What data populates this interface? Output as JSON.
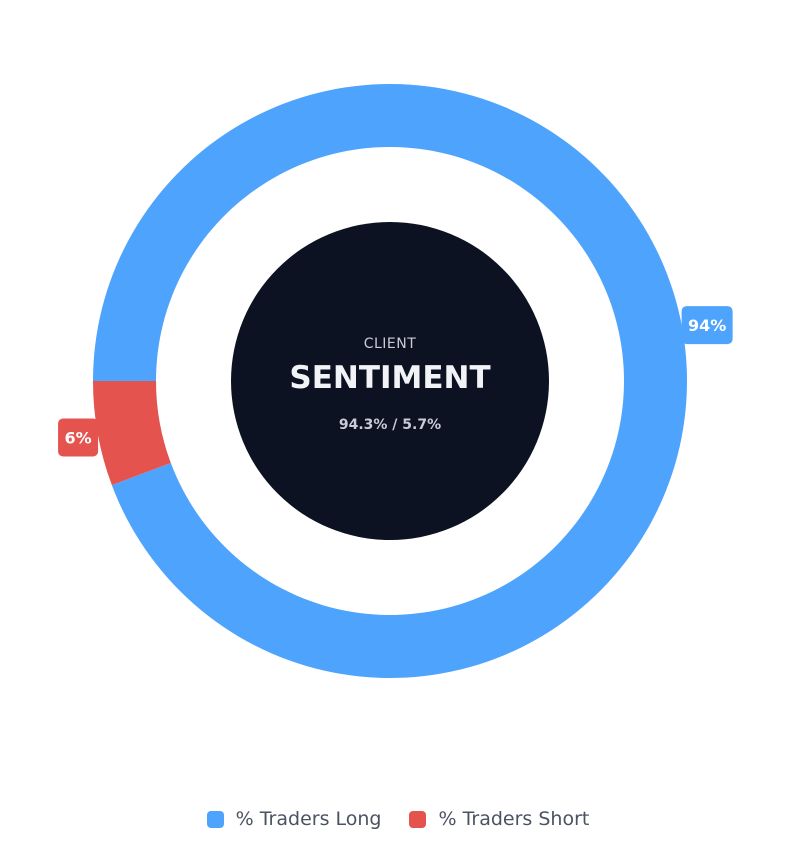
{
  "chart_data": {
    "type": "pie",
    "variant": "donut",
    "slices": [
      {
        "name": "% Traders Long",
        "value": 94.3,
        "label": "94%",
        "color": "#4ea3fd"
      },
      {
        "name": "% Traders Short",
        "value": 5.7,
        "label": "6%",
        "color": "#e5534f"
      }
    ],
    "center": {
      "kicker": "CLIENT",
      "title": "SENTIMENT",
      "ratio": "94.3% / 5.7%",
      "background": "#0c1221"
    },
    "legend_position": "bottom"
  },
  "legend": [
    {
      "label": "% Traders Long",
      "color": "#4ea3fd"
    },
    {
      "label": "% Traders Short",
      "color": "#e5534f"
    }
  ]
}
